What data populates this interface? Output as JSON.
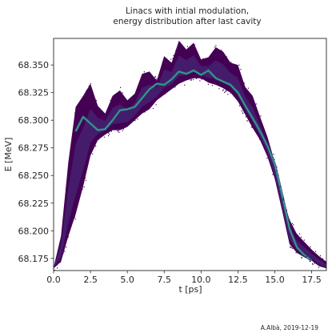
{
  "chart_data": {
    "type": "heatmap",
    "title": [
      "Linacs with intial modulation,",
      "energy distribution after last cavity"
    ],
    "xlabel": "t [ps]",
    "ylabel": "E [MeV]",
    "xlim": [
      0.0,
      18.5
    ],
    "ylim": [
      68.164,
      68.374
    ],
    "x_ticks": [
      0.0,
      2.5,
      5.0,
      7.5,
      10.0,
      12.5,
      15.0,
      17.5
    ],
    "x_tick_labels": [
      "0.0",
      "2.5",
      "5.0",
      "7.5",
      "10.0",
      "12.5",
      "15.0",
      "17.5"
    ],
    "y_ticks": [
      68.175,
      68.2,
      68.225,
      68.25,
      68.275,
      68.3,
      68.325,
      68.35
    ],
    "y_tick_labels": [
      "68.175",
      "68.200",
      "68.225",
      "68.250",
      "68.275",
      "68.300",
      "68.325",
      "68.350"
    ],
    "grid": false,
    "colormap": [
      "#440154",
      "#3b528b",
      "#21918c",
      "#5ec962",
      "#fde725"
    ],
    "distribution": {
      "upper_edge": [
        [
          0.0,
          68.167
        ],
        [
          0.5,
          68.195
        ],
        [
          1.0,
          68.262
        ],
        [
          1.5,
          68.312
        ],
        [
          2.0,
          68.322
        ],
        [
          2.5,
          68.333
        ],
        [
          3.0,
          68.313
        ],
        [
          3.5,
          68.306
        ],
        [
          4.0,
          68.322
        ],
        [
          4.5,
          68.327
        ],
        [
          5.0,
          68.318
        ],
        [
          5.5,
          68.324
        ],
        [
          6.0,
          68.342
        ],
        [
          6.5,
          68.344
        ],
        [
          7.0,
          68.336
        ],
        [
          7.5,
          68.358
        ],
        [
          8.0,
          68.352
        ],
        [
          8.5,
          68.372
        ],
        [
          9.0,
          68.364
        ],
        [
          9.5,
          68.37
        ],
        [
          10.0,
          68.355
        ],
        [
          10.5,
          68.357
        ],
        [
          11.0,
          68.366
        ],
        [
          11.5,
          68.362
        ],
        [
          12.0,
          68.352
        ],
        [
          12.5,
          68.35
        ],
        [
          13.0,
          68.33
        ],
        [
          13.5,
          68.322
        ],
        [
          14.0,
          68.303
        ],
        [
          14.5,
          68.285
        ],
        [
          15.0,
          68.262
        ],
        [
          15.5,
          68.232
        ],
        [
          16.0,
          68.21
        ],
        [
          16.5,
          68.197
        ],
        [
          17.0,
          68.19
        ],
        [
          17.5,
          68.183
        ],
        [
          18.0,
          68.177
        ],
        [
          18.5,
          68.172
        ]
      ],
      "lower_edge": [
        [
          0.0,
          68.166
        ],
        [
          0.5,
          68.172
        ],
        [
          1.0,
          68.195
        ],
        [
          1.5,
          68.215
        ],
        [
          2.0,
          68.24
        ],
        [
          2.5,
          68.268
        ],
        [
          3.0,
          68.282
        ],
        [
          3.5,
          68.287
        ],
        [
          4.0,
          68.291
        ],
        [
          4.5,
          68.291
        ],
        [
          5.0,
          68.294
        ],
        [
          5.5,
          68.3
        ],
        [
          6.0,
          68.306
        ],
        [
          6.5,
          68.31
        ],
        [
          7.0,
          68.318
        ],
        [
          7.5,
          68.323
        ],
        [
          8.0,
          68.328
        ],
        [
          8.5,
          68.333
        ],
        [
          9.0,
          68.336
        ],
        [
          9.5,
          68.338
        ],
        [
          10.0,
          68.338
        ],
        [
          10.5,
          68.334
        ],
        [
          11.0,
          68.332
        ],
        [
          11.5,
          68.329
        ],
        [
          12.0,
          68.325
        ],
        [
          12.5,
          68.317
        ],
        [
          13.0,
          68.305
        ],
        [
          13.5,
          68.293
        ],
        [
          14.0,
          68.282
        ],
        [
          14.5,
          68.267
        ],
        [
          15.0,
          68.247
        ],
        [
          15.5,
          68.218
        ],
        [
          16.0,
          68.188
        ],
        [
          16.5,
          68.18
        ],
        [
          17.0,
          68.176
        ],
        [
          17.5,
          68.173
        ],
        [
          18.0,
          68.168
        ],
        [
          18.5,
          68.166
        ]
      ],
      "ridge": [
        [
          1.5,
          68.29
        ],
        [
          2.0,
          68.303
        ],
        [
          2.5,
          68.297
        ],
        [
          3.0,
          68.291
        ],
        [
          3.5,
          68.292
        ],
        [
          4.0,
          68.3
        ],
        [
          4.5,
          68.309
        ],
        [
          5.0,
          68.31
        ],
        [
          5.5,
          68.312
        ],
        [
          6.0,
          68.32
        ],
        [
          6.5,
          68.328
        ],
        [
          7.0,
          68.333
        ],
        [
          7.5,
          68.332
        ],
        [
          8.0,
          68.337
        ],
        [
          8.5,
          68.344
        ],
        [
          9.0,
          68.342
        ],
        [
          9.5,
          68.345
        ],
        [
          10.0,
          68.341
        ],
        [
          10.5,
          68.345
        ],
        [
          11.0,
          68.338
        ],
        [
          11.5,
          68.335
        ],
        [
          12.0,
          68.332
        ],
        [
          12.5,
          68.325
        ],
        [
          13.0,
          68.313
        ],
        [
          13.5,
          68.302
        ],
        [
          14.0,
          68.29
        ],
        [
          14.5,
          68.277
        ],
        [
          15.0,
          68.26
        ],
        [
          15.5,
          68.232
        ],
        [
          16.0,
          68.202
        ],
        [
          16.5,
          68.185
        ],
        [
          17.0,
          68.178
        ],
        [
          17.5,
          68.173
        ]
      ]
    }
  },
  "credit": "A.Albà, 2019-12-19"
}
